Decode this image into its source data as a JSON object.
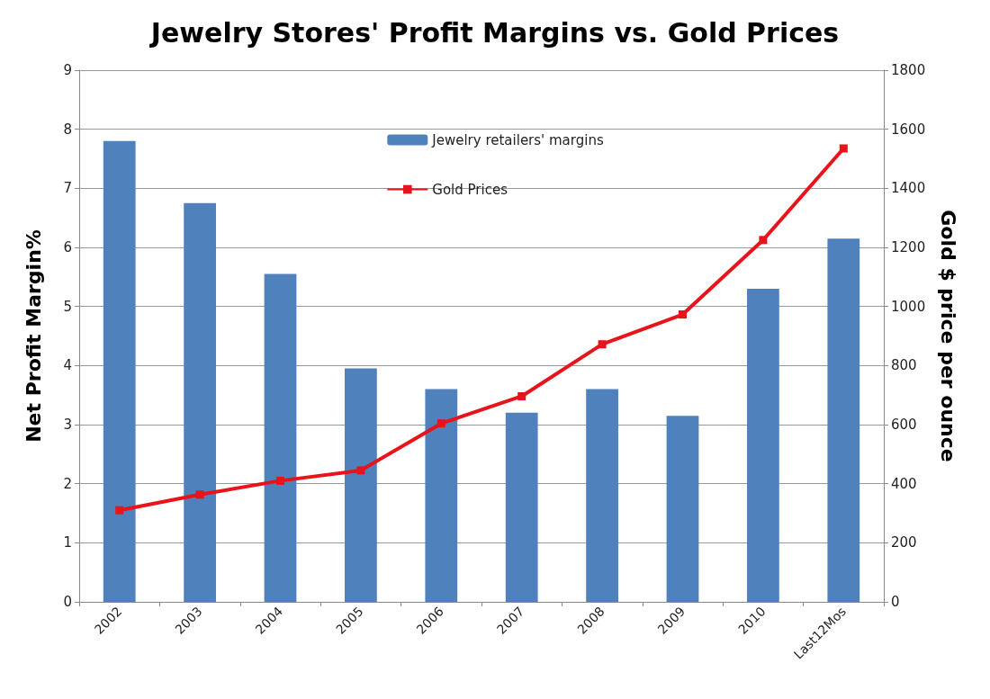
{
  "chart_data": {
    "type": "bar",
    "title": "Jewelry Stores' Profit Margins vs. Gold Prices",
    "ylabel": "Net Profit Margin%",
    "y2label": "Gold $ price per ounce",
    "categories": [
      "2002",
      "2003",
      "2004",
      "2005",
      "2006",
      "2007",
      "2008",
      "2009",
      "2010",
      "Last12Mos"
    ],
    "series": [
      {
        "name": "Jewelry retailers' margins",
        "color": "#4f81bd",
        "values": [
          7.8,
          6.75,
          5.55,
          3.95,
          3.6,
          3.2,
          3.6,
          3.15,
          5.3,
          6.15
        ]
      },
      {
        "name": "Gold Prices",
        "type": "line",
        "axis": "y2",
        "color": "#e8131b",
        "marker": "square",
        "values": [
          310,
          363,
          410,
          445,
          604,
          696,
          872,
          973,
          1225,
          1535
        ]
      }
    ],
    "ylim": [
      0,
      9
    ],
    "yticks": [
      0,
      1,
      2,
      3,
      4,
      5,
      6,
      7,
      8,
      9
    ],
    "y2lim": [
      0,
      1800
    ],
    "y2ticks": [
      0,
      200,
      400,
      600,
      800,
      1000,
      1200,
      1400,
      1600,
      1800
    ],
    "grid": "y",
    "legend": "top"
  }
}
